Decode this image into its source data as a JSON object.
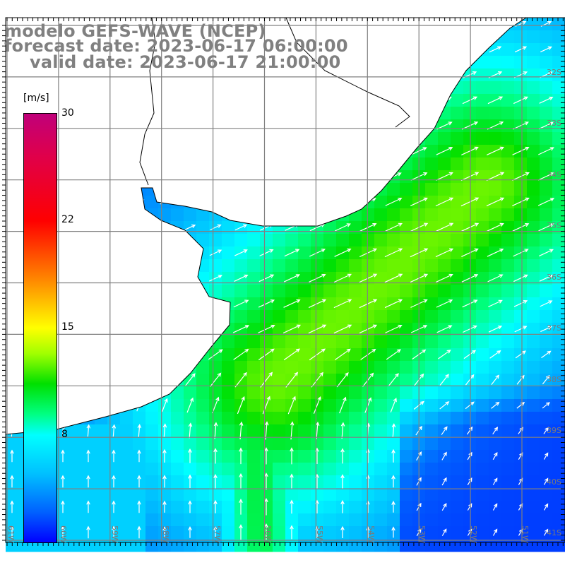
{
  "title": {
    "model": "modelo GEFS-WAVE (NCEP)",
    "forecast": "forecast date: 2023-06-17 06:00:00",
    "valid": "valid date: 2023-06-17 21:00:00"
  },
  "colorbar": {
    "units": "[m/s]",
    "ticks": [
      "30",
      "22",
      "15",
      "8"
    ],
    "range": [
      0,
      30
    ]
  },
  "grid": {
    "lat_labels": [
      "32S",
      "33S",
      "34S",
      "35S",
      "36S",
      "37S",
      "38S",
      "39S",
      "40S",
      "41S"
    ],
    "lon_labels": [
      "61W",
      "60W",
      "59W",
      "58W",
      "57W",
      "56W",
      "55W",
      "54W",
      "53W",
      "52W",
      "51W"
    ]
  },
  "colors": {
    "land": "#ffffff",
    "coastline": "#000000",
    "grid_line": "#808080",
    "arrow": "#ffffff",
    "title_text": "#808080"
  }
}
